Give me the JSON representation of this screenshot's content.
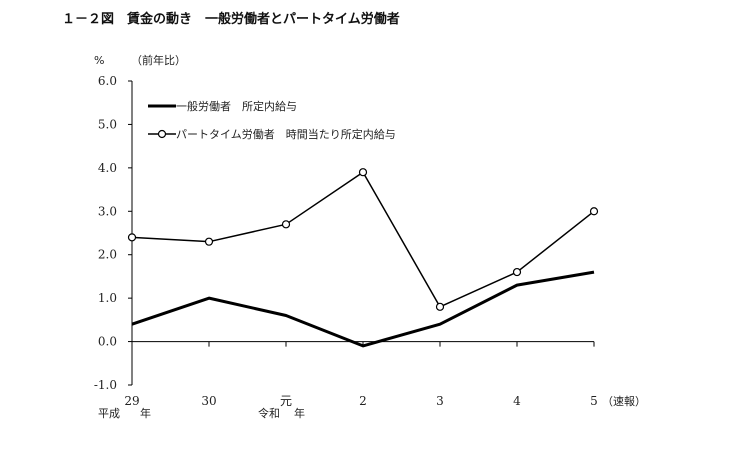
{
  "chart_data": {
    "type": "line",
    "title": "１－２図　賃金の動き　一般労働者とパートタイム労働者",
    "y_unit": "%",
    "y_note": "（前年比）",
    "ylim": [
      -1.0,
      6.0
    ],
    "yticks": [
      "6.0",
      "5.0",
      "4.0",
      "3.0",
      "2.0",
      "1.0",
      "0.0",
      "-1.0"
    ],
    "ytick_values": [
      6,
      5,
      4,
      3,
      2,
      1,
      0,
      -1
    ],
    "categories": [
      "29",
      "30",
      "元",
      "2",
      "3",
      "4",
      "5"
    ],
    "category_notes": {
      "era1_prefix": "平成",
      "era1_suffix": "年",
      "era2_prefix": "令和",
      "era2_suffix": "年",
      "last_suffix": "（速報）"
    },
    "grid": false,
    "legend_position": "top-left",
    "series": [
      {
        "name": "一般労働者　所定内給与",
        "values": [
          0.4,
          1.0,
          0.6,
          -0.1,
          0.4,
          1.3,
          1.6
        ],
        "marker": "none",
        "line_width": 3
      },
      {
        "name": "パートタイム労働者　時間当たり所定内給与",
        "values": [
          2.4,
          2.3,
          2.7,
          3.9,
          0.8,
          1.6,
          3.0
        ],
        "marker": "circle",
        "line_width": 1.5
      }
    ]
  }
}
